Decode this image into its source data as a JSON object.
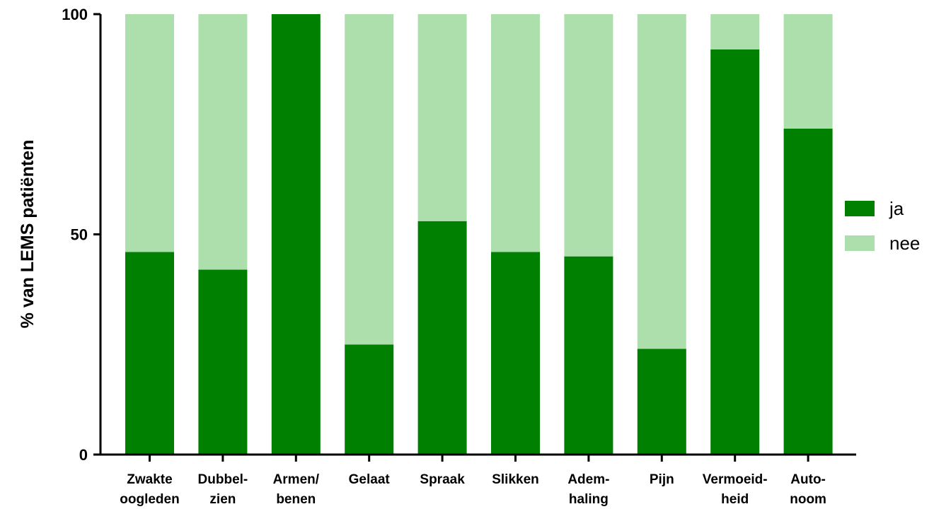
{
  "chart_data": {
    "type": "bar",
    "stacked": true,
    "categories": [
      [
        "Zwakte",
        "oogleden"
      ],
      [
        "Dubbel-",
        "zien"
      ],
      [
        "Armen/",
        "benen"
      ],
      [
        "Gelaat"
      ],
      [
        "Spraak"
      ],
      [
        "Slikken"
      ],
      [
        "Adem-",
        "haling"
      ],
      [
        "Pijn"
      ],
      [
        "Vermoeid-",
        "heid"
      ],
      [
        "Auto-",
        "noom"
      ]
    ],
    "series": [
      {
        "name": "ja",
        "color": "#008000",
        "values": [
          46,
          42,
          100,
          25,
          53,
          46,
          45,
          24,
          92,
          74
        ]
      },
      {
        "name": "nee",
        "color": "#addfad",
        "values": [
          54,
          58,
          0,
          75,
          47,
          54,
          55,
          76,
          8,
          26
        ]
      }
    ],
    "ylabel": "% van LEMS patiënten",
    "ylim": [
      0,
      100
    ],
    "yticks": [
      0,
      50,
      100
    ],
    "grid": false,
    "legend": "right"
  }
}
